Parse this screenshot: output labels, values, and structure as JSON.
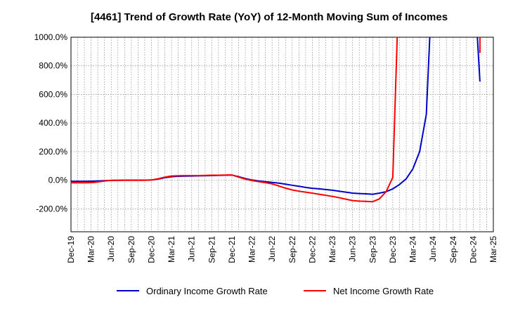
{
  "chart_data": {
    "type": "line",
    "title": "[4461]  Trend of Growth Rate (YoY) of 12-Month Moving Sum of Incomes",
    "xlabel": "",
    "ylabel": "",
    "x_tick_labels": [
      "Dec-19",
      "Mar-20",
      "Jun-20",
      "Sep-20",
      "Dec-20",
      "Mar-21",
      "Jun-21",
      "Sep-21",
      "Dec-21",
      "Mar-22",
      "Jun-22",
      "Sep-22",
      "Dec-22",
      "Mar-23",
      "Jun-23",
      "Sep-23",
      "Dec-23",
      "Mar-24",
      "Jun-24",
      "Sep-24",
      "Dec-24",
      "Mar-25"
    ],
    "y_ticks": [
      {
        "value": 1000,
        "label": "1000.0%"
      },
      {
        "value": 800,
        "label": "800.0%"
      },
      {
        "value": 600,
        "label": "600.0%"
      },
      {
        "value": 400,
        "label": "400.0%"
      },
      {
        "value": 200,
        "label": "200.0%"
      },
      {
        "value": 0,
        "label": "0.0%"
      },
      {
        "value": -200,
        "label": "-200.0%"
      }
    ],
    "ylim": [
      -360,
      1000
    ],
    "xlim_months": [
      0,
      63
    ],
    "grid": true,
    "legend_position": "bottom",
    "series": [
      {
        "name": "Ordinary Income Growth Rate",
        "color": "#0000cc",
        "points": [
          [
            0,
            -8
          ],
          [
            1,
            -8
          ],
          [
            2,
            -8
          ],
          [
            3,
            -7
          ],
          [
            4,
            -5
          ],
          [
            5,
            -3
          ],
          [
            6,
            -1
          ],
          [
            7,
            0
          ],
          [
            8,
            1
          ],
          [
            9,
            1
          ],
          [
            10,
            1
          ],
          [
            11,
            1
          ],
          [
            12,
            2
          ],
          [
            13,
            8
          ],
          [
            14,
            18
          ],
          [
            15,
            25
          ],
          [
            16,
            28
          ],
          [
            17,
            29
          ],
          [
            18,
            30
          ],
          [
            19,
            31
          ],
          [
            20,
            32
          ],
          [
            21,
            33
          ],
          [
            22,
            34
          ],
          [
            23,
            35
          ],
          [
            24,
            36
          ],
          [
            25,
            25
          ],
          [
            26,
            12
          ],
          [
            27,
            2
          ],
          [
            28,
            -5
          ],
          [
            29,
            -10
          ],
          [
            30,
            -15
          ],
          [
            31,
            -20
          ],
          [
            32,
            -27
          ],
          [
            33,
            -35
          ],
          [
            34,
            -42
          ],
          [
            35,
            -50
          ],
          [
            36,
            -56
          ],
          [
            37,
            -60
          ],
          [
            38,
            -65
          ],
          [
            39,
            -70
          ],
          [
            40,
            -76
          ],
          [
            41,
            -83
          ],
          [
            42,
            -90
          ],
          [
            43,
            -93
          ],
          [
            44,
            -95
          ],
          [
            45,
            -98
          ],
          [
            46,
            -90
          ],
          [
            47,
            -80
          ],
          [
            48,
            -60
          ],
          [
            49,
            -30
          ],
          [
            50,
            10
          ],
          [
            51,
            80
          ],
          [
            52,
            200
          ],
          [
            53,
            460
          ],
          [
            54,
            1500
          ],
          [
            60,
            1500
          ],
          [
            61,
            690
          ]
        ]
      },
      {
        "name": "Net Income Growth Rate",
        "color": "#ff0000",
        "points": [
          [
            0,
            -18
          ],
          [
            1,
            -18
          ],
          [
            2,
            -18
          ],
          [
            3,
            -17
          ],
          [
            4,
            -12
          ],
          [
            5,
            -5
          ],
          [
            6,
            0
          ],
          [
            7,
            0
          ],
          [
            8,
            0
          ],
          [
            9,
            0
          ],
          [
            10,
            0
          ],
          [
            11,
            0
          ],
          [
            12,
            2
          ],
          [
            13,
            10
          ],
          [
            14,
            22
          ],
          [
            15,
            30
          ],
          [
            16,
            32
          ],
          [
            17,
            33
          ],
          [
            18,
            33
          ],
          [
            19,
            33
          ],
          [
            20,
            34
          ],
          [
            21,
            35
          ],
          [
            22,
            35
          ],
          [
            23,
            36
          ],
          [
            24,
            37
          ],
          [
            25,
            22
          ],
          [
            26,
            8
          ],
          [
            27,
            -2
          ],
          [
            28,
            -10
          ],
          [
            29,
            -17
          ],
          [
            30,
            -25
          ],
          [
            31,
            -40
          ],
          [
            32,
            -55
          ],
          [
            33,
            -68
          ],
          [
            34,
            -76
          ],
          [
            35,
            -83
          ],
          [
            36,
            -90
          ],
          [
            37,
            -98
          ],
          [
            38,
            -105
          ],
          [
            39,
            -113
          ],
          [
            40,
            -122
          ],
          [
            41,
            -132
          ],
          [
            42,
            -142
          ],
          [
            43,
            -146
          ],
          [
            44,
            -148
          ],
          [
            45,
            -150
          ],
          [
            46,
            -130
          ],
          [
            47,
            -80
          ],
          [
            48,
            20
          ],
          [
            49,
            1500
          ],
          [
            61,
            1500
          ],
          [
            61,
            890
          ]
        ]
      }
    ]
  }
}
